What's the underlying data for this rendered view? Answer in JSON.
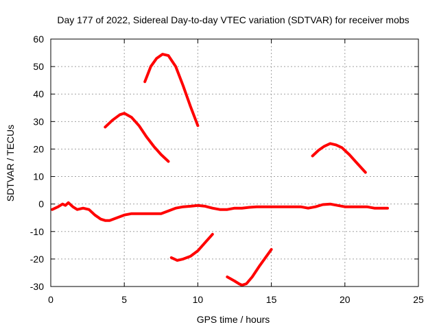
{
  "chart_data": {
    "type": "line",
    "title": "Day 177 of 2022, Sidereal Day-to-day VTEC variation (SDTVAR) for receiver mobs",
    "xlabel": "GPS time / hours",
    "ylabel": "SDTVAR / TECUs",
    "xlim": [
      0,
      25
    ],
    "ylim": [
      -30,
      60
    ],
    "xticks": [
      0,
      5,
      10,
      15,
      20,
      25
    ],
    "yticks": [
      -30,
      -20,
      -10,
      0,
      10,
      20,
      30,
      40,
      50,
      60
    ],
    "grid": true,
    "legend": "none",
    "series_color": "#ff0000",
    "series": [
      {
        "name": "track-1",
        "x": [
          0.1,
          0.5,
          0.8,
          1.0,
          1.2,
          1.5,
          1.8,
          2.2,
          2.6,
          3.0,
          3.4,
          3.7,
          4.0,
          4.5,
          5.0,
          5.5,
          6.0,
          6.5,
          7.0,
          7.5,
          8.0,
          8.5,
          9.0,
          9.5,
          10.0,
          10.5,
          11.0,
          11.5,
          12.0,
          12.5,
          13.0,
          13.5,
          14.0,
          14.5,
          15.0,
          15.5,
          16.0,
          16.5,
          17.0,
          17.5,
          18.0,
          18.5,
          19.0,
          19.5,
          20.0,
          20.5,
          21.0,
          21.5,
          22.0,
          22.5,
          22.9
        ],
        "y": [
          -2,
          -1,
          0,
          -0.5,
          0.5,
          -1,
          -2,
          -1.5,
          -2,
          -4,
          -5.5,
          -6,
          -6,
          -5,
          -4,
          -3.5,
          -3.5,
          -3.5,
          -3.5,
          -3.5,
          -2.5,
          -1.5,
          -1,
          -0.8,
          -0.5,
          -0.8,
          -1.5,
          -2,
          -2,
          -1.5,
          -1.5,
          -1.2,
          -1,
          -1,
          -1,
          -1,
          -1,
          -1,
          -1,
          -1.5,
          -1,
          -0.2,
          0,
          -0.5,
          -1,
          -1,
          -1,
          -1,
          -1.5,
          -1.5,
          -1.5
        ]
      },
      {
        "name": "track-2",
        "x": [
          3.7,
          4.2,
          4.7,
          5.0,
          5.5,
          6.0,
          6.5,
          7.0,
          7.5,
          8.0
        ],
        "y": [
          28,
          30.5,
          32.5,
          33,
          31.5,
          28.5,
          24.5,
          21,
          18,
          15.5
        ]
      },
      {
        "name": "track-3",
        "x": [
          6.4,
          6.8,
          7.2,
          7.6,
          8.0,
          8.5,
          9.0,
          9.5,
          10.0
        ],
        "y": [
          44.5,
          50,
          53,
          54.5,
          54,
          50,
          43,
          35.5,
          28.5
        ]
      },
      {
        "name": "track-4",
        "x": [
          8.2,
          8.6,
          9.0,
          9.5,
          10.0,
          10.5,
          11.0
        ],
        "y": [
          -19.5,
          -20.5,
          -20,
          -19,
          -17,
          -14,
          -11
        ]
      },
      {
        "name": "track-5",
        "x": [
          12.0,
          12.5,
          12.8,
          13.0,
          13.3,
          13.7,
          14.2,
          14.6,
          15.0
        ],
        "y": [
          -26.5,
          -28,
          -29,
          -29.5,
          -29,
          -26.5,
          -22.5,
          -19.5,
          -16.5
        ]
      },
      {
        "name": "track-6",
        "x": [
          17.8,
          18.2,
          18.6,
          19.0,
          19.4,
          19.8,
          20.3,
          20.8,
          21.4
        ],
        "y": [
          17.5,
          19.5,
          21,
          22,
          21.5,
          20.5,
          18,
          15,
          11.5
        ]
      }
    ]
  }
}
